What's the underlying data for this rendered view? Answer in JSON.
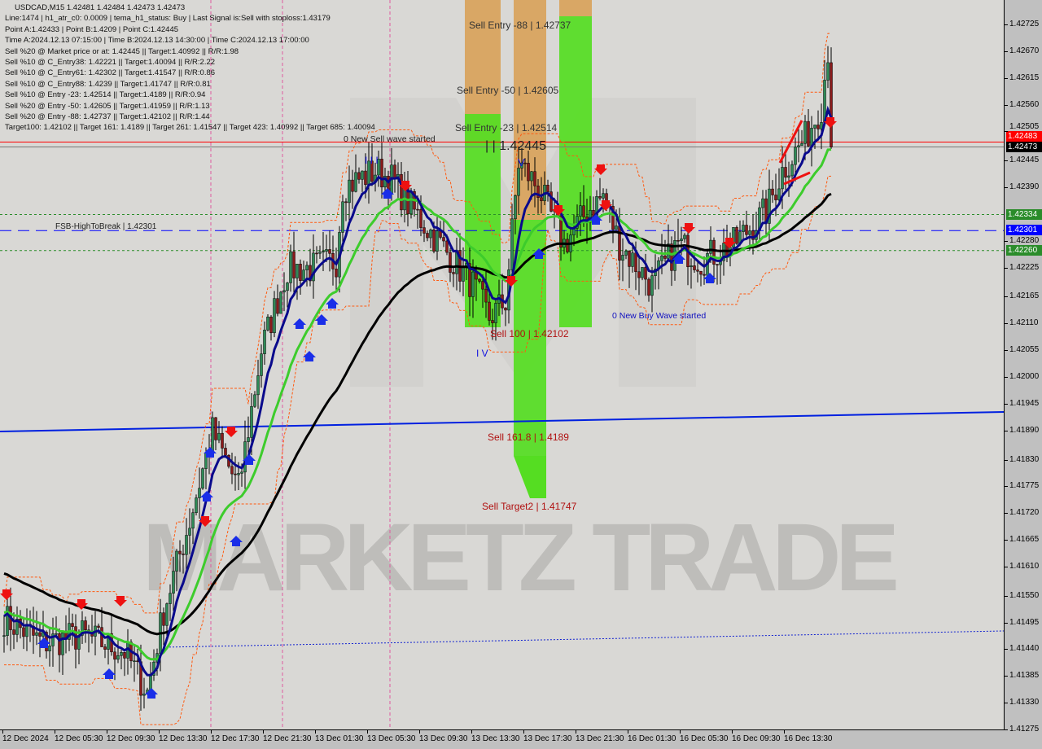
{
  "info": {
    "title": "USDCAD,M15  1.42481 1.42484 1.42473 1.42473",
    "lines": [
      "Line:1474 | h1_atr_c0: 0.0009 | tema_h1_status: Buy | Last Signal is:Sell with stoploss:1.43179",
      "Point A:1.42433 | Point B:1.4209 | Point C:1.42445",
      "Time A:2024.12.13 07:15:00 | Time B:2024.12.13 14:30:00 | Time C:2024.12.13 17:00:00",
      "Sell %20 @ Market price or at: 1.42445 || Target:1.40992 || R/R:1.98",
      "Sell %10 @ C_Entry38: 1.42221 || Target:1.40094 || R/R:2.22",
      "Sell %10 @ C_Entry61: 1.42302 || Target:1.41547 || R/R:0.86",
      "Sell %10 @ C_Entry88: 1.4239 || Target:1.41747 || R/R:0.81",
      "Sell %10 @ Entry -23: 1.42514 || Target:1.4189 || R/R:0.94",
      "Sell %20 @ Entry -50: 1.42605 || Target:1.41959 || R/R:1.13",
      "Sell %20 @ Entry -88: 1.42737 || Target:1.42102 || R/R:1.44",
      "Target100: 1.42102 || Target 161: 1.4189 || Target 261: 1.41547 || Target 423: 1.40992 || Target 685: 1.40094"
    ]
  },
  "chart_data": {
    "type": "candlestick",
    "symbol": "USDCAD",
    "timeframe": "M15",
    "ylim": [
      1.41275,
      1.42725
    ],
    "y_ticks": [
      "1.42725",
      "1.42670",
      "1.42615",
      "1.42560",
      "1.42505",
      "1.42445",
      "1.42390",
      "1.42280",
      "1.42225",
      "1.42165",
      "1.42110",
      "1.42055",
      "1.42000",
      "1.41945",
      "1.41890",
      "1.41830",
      "1.41775",
      "1.41720",
      "1.41665",
      "1.41610",
      "1.41550",
      "1.41495",
      "1.41440",
      "1.41385",
      "1.41330",
      "1.41275"
    ],
    "x_ticks": [
      "12 Dec 2024",
      "12 Dec 05:30",
      "12 Dec 09:30",
      "12 Dec 13:30",
      "12 Dec 17:30",
      "12 Dec 21:30",
      "13 Dec 01:30",
      "13 Dec 05:30",
      "13 Dec 09:30",
      "13 Dec 13:30",
      "13 Dec 17:30",
      "13 Dec 21:30",
      "16 Dec 01:30",
      "16 Dec 05:30",
      "16 Dec 09:30",
      "16 Dec 13:30"
    ],
    "price_path_bar_index": [
      0,
      12,
      24,
      37,
      44,
      49,
      57,
      64,
      72,
      79,
      87,
      94,
      102,
      104,
      114,
      119,
      124,
      134,
      144,
      149,
      154,
      158,
      164,
      172,
      179,
      184,
      189,
      199,
      207,
      214,
      224,
      234,
      239,
      246,
      251,
      253,
      254
    ],
    "price_path": [
      1.41503,
      1.41453,
      1.41469,
      1.41436,
      1.41352,
      1.4152,
      1.41704,
      1.41888,
      1.41771,
      1.42055,
      1.42223,
      1.42223,
      1.4224,
      1.4239,
      1.42424,
      1.42407,
      1.42357,
      1.42273,
      1.42189,
      1.42122,
      1.42156,
      1.4244,
      1.4239,
      1.42273,
      1.4234,
      1.42373,
      1.42273,
      1.42189,
      1.42273,
      1.4224,
      1.42273,
      1.4234,
      1.42424,
      1.42491,
      1.42558,
      1.42675,
      1.42473
    ],
    "bullish_color": "#2e8b57",
    "bearish_color": "#8b1a1a",
    "ma_colors": {
      "fast": "#0a0a8c",
      "mid": "#3dcc2c",
      "slow": "#000000"
    },
    "levels": [
      {
        "price": 1.42483,
        "label": "1.42483",
        "color": "#ff0000",
        "style": "solid"
      },
      {
        "price": 1.42473,
        "label": "1.42473",
        "color": "#000000",
        "style": "solid"
      },
      {
        "price": 1.42334,
        "label": "1.42334",
        "color": "#2a8c2a",
        "style": "dotted"
      },
      {
        "price": 1.42301,
        "label": "1.42301",
        "color": "#0000ff",
        "style": "dashed"
      },
      {
        "price": 1.4226,
        "label": "1.42260",
        "color": "#2a8c2a",
        "style": "dotted"
      }
    ],
    "annotations": {
      "fsb": "FSB-HighToBreak | 1.42301",
      "sell_wave": "0 New Sell wave started",
      "buy_wave": "0 New Buy Wave started",
      "entry_88": "Sell Entry -88 | 1.42737",
      "entry_50": "Sell Entry -50 | 1.42605",
      "entry_23": "Sell Entry -23 | 1.42514",
      "point_c": "| | 1.42445",
      "sell100": "Sell 100 | 1.42102",
      "sell161": "Sell 161.8 | 1.4189",
      "target2": "Sell Target2 | 1.41747",
      "wave_iii": "I I I",
      "wave_iv": "I V",
      "wave_v": "V"
    },
    "watermark": "MARKETZ TRADE"
  }
}
